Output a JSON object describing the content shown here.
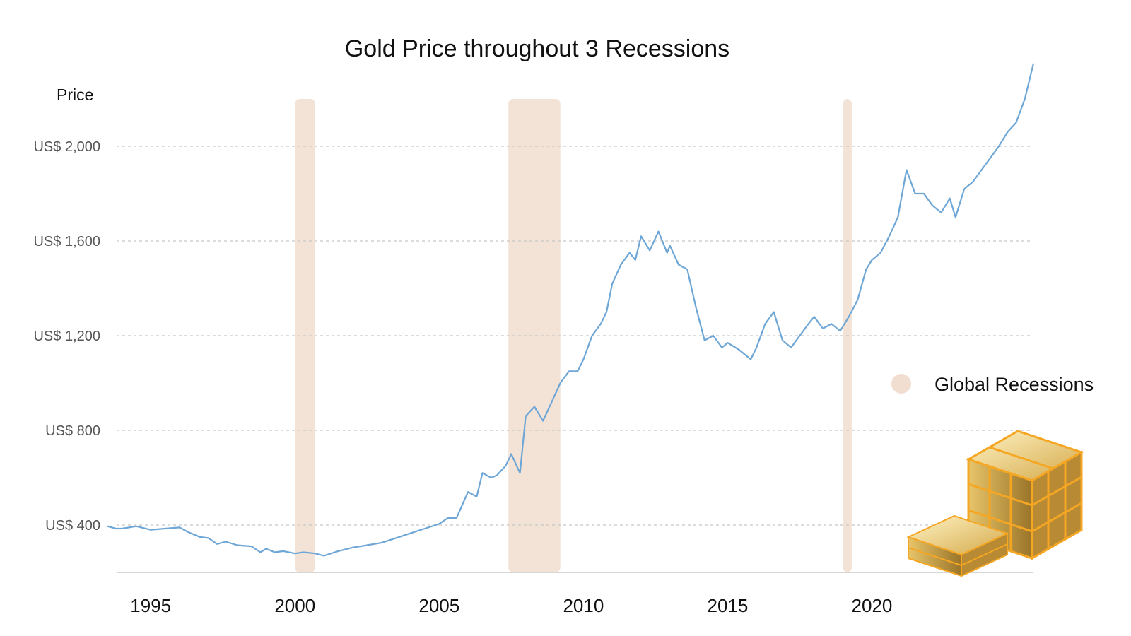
{
  "chart_data": {
    "type": "line",
    "title": "Gold Price throughout 3 Recessions",
    "ylabel": "Price",
    "xlabel": "",
    "xlim": [
      1993.5,
      2025.6
    ],
    "ylim": [
      200,
      2200
    ],
    "y_ticks": [
      400,
      800,
      1200,
      1600,
      2000
    ],
    "y_tick_labels": [
      "US$ 400",
      "US$ 800",
      "US$ 1,200",
      "US$ 1,600",
      "US$ 2,000"
    ],
    "x_ticks": [
      1995,
      2000,
      2005,
      2010,
      2015,
      2020
    ],
    "x_tick_labels": [
      "1995",
      "2000",
      "2005",
      "2010",
      "2015",
      "2020"
    ],
    "grid": true,
    "legend": {
      "position": "right",
      "entries": [
        {
          "label": "Global Recessions",
          "color": "#f1ded0"
        }
      ]
    },
    "recessions": [
      {
        "start": 2000.0,
        "end": 2000.7
      },
      {
        "start": 2007.4,
        "end": 2009.2
      },
      {
        "start": 2019.0,
        "end": 2019.3
      }
    ],
    "series": [
      {
        "name": "Gold Price",
        "color": "#6ea6d6",
        "x": [
          1993.5,
          1993.8,
          1994.0,
          1994.5,
          1995.0,
          1995.5,
          1996.0,
          1996.3,
          1996.7,
          1997.0,
          1997.3,
          1997.6,
          1998.0,
          1998.5,
          1998.8,
          1999.0,
          1999.3,
          1999.6,
          2000.0,
          2000.3,
          2000.7,
          2001.0,
          2001.5,
          2002.0,
          2002.5,
          2003.0,
          2003.5,
          2004.0,
          2004.5,
          2005.0,
          2005.3,
          2005.6,
          2006.0,
          2006.3,
          2006.5,
          2006.8,
          2007.0,
          2007.3,
          2007.5,
          2007.8,
          2008.0,
          2008.3,
          2008.6,
          2008.9,
          2009.2,
          2009.5,
          2009.8,
          2010.0,
          2010.3,
          2010.6,
          2010.8,
          2011.0,
          2011.3,
          2011.6,
          2011.8,
          2012.0,
          2012.3,
          2012.6,
          2012.9,
          2013.0,
          2013.3,
          2013.6,
          2013.9,
          2014.2,
          2014.5,
          2014.8,
          2015.0,
          2015.4,
          2015.8,
          2016.0,
          2016.3,
          2016.6,
          2016.9,
          2017.2,
          2017.5,
          2017.8,
          2018.0,
          2018.3,
          2018.6,
          2018.9,
          2019.2,
          2019.5,
          2019.8,
          2020.0,
          2020.3,
          2020.6,
          2020.9,
          2021.2,
          2021.5,
          2021.8,
          2022.1,
          2022.4,
          2022.7,
          2022.9,
          2023.2,
          2023.5,
          2023.8,
          2024.1,
          2024.4,
          2024.7,
          2025.0,
          2025.3,
          2025.6
        ],
        "values": [
          395,
          385,
          385,
          395,
          380,
          385,
          390,
          370,
          350,
          345,
          320,
          330,
          315,
          310,
          285,
          300,
          285,
          290,
          280,
          285,
          280,
          270,
          290,
          305,
          315,
          325,
          345,
          365,
          385,
          405,
          430,
          430,
          540,
          520,
          620,
          600,
          610,
          650,
          700,
          620,
          860,
          900,
          840,
          920,
          1000,
          1050,
          1050,
          1100,
          1200,
          1250,
          1300,
          1420,
          1500,
          1550,
          1520,
          1620,
          1560,
          1640,
          1550,
          1580,
          1500,
          1480,
          1320,
          1180,
          1200,
          1150,
          1170,
          1140,
          1100,
          1150,
          1250,
          1300,
          1180,
          1150,
          1200,
          1250,
          1280,
          1230,
          1250,
          1220,
          1280,
          1350,
          1480,
          1520,
          1550,
          1620,
          1700,
          1900,
          1800,
          1800,
          1750,
          1720,
          1780,
          1700,
          1820,
          1850,
          1900,
          1950,
          2000,
          2060,
          2100,
          2200,
          2350
        ]
      }
    ]
  }
}
